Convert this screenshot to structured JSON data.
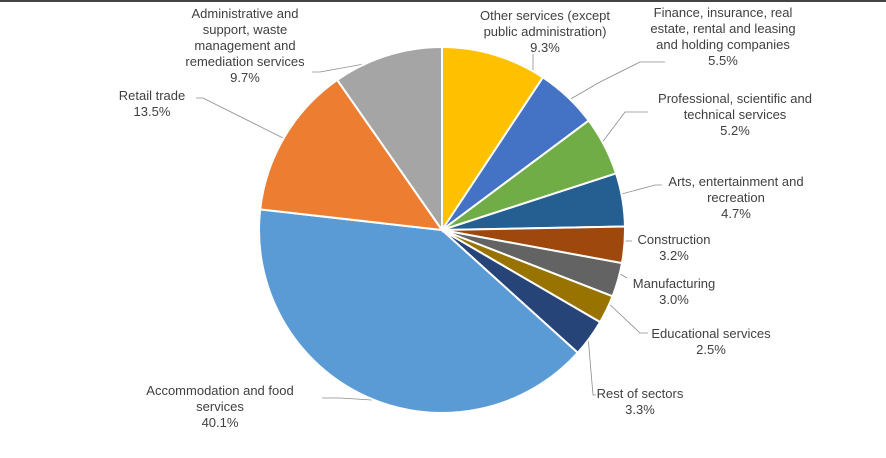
{
  "chart_data": {
    "type": "pie",
    "title": "",
    "start_angle_deg": 0,
    "direction": "clockwise",
    "slices": [
      {
        "label_lines": [
          "Other services (except",
          "public administration)"
        ],
        "pct_text": "9.3%",
        "value": 9.3,
        "color": "#FFC000"
      },
      {
        "label_lines": [
          "Finance, insurance, real",
          "estate, rental and leasing",
          "and holding companies"
        ],
        "pct_text": "5.5%",
        "value": 5.5,
        "color": "#4472C4"
      },
      {
        "label_lines": [
          "Professional, scientific and",
          "technical services"
        ],
        "pct_text": "5.2%",
        "value": 5.2,
        "color": "#70AD47"
      },
      {
        "label_lines": [
          "Arts, entertainment and",
          "recreation"
        ],
        "pct_text": "4.7%",
        "value": 4.7,
        "color": "#255E91"
      },
      {
        "label_lines": [
          "Construction"
        ],
        "pct_text": "3.2%",
        "value": 3.2,
        "color": "#9E480E"
      },
      {
        "label_lines": [
          "Manufacturing"
        ],
        "pct_text": "3.0%",
        "value": 3.0,
        "color": "#636363"
      },
      {
        "label_lines": [
          "Educational services"
        ],
        "pct_text": "2.5%",
        "value": 2.5,
        "color": "#997300"
      },
      {
        "label_lines": [
          "Rest of sectors"
        ],
        "pct_text": "3.3%",
        "value": 3.3,
        "color": "#264478"
      },
      {
        "label_lines": [
          "Accommodation and food",
          "services"
        ],
        "pct_text": "40.1%",
        "value": 40.1,
        "color": "#5B9BD5"
      },
      {
        "label_lines": [
          "Retail trade"
        ],
        "pct_text": "13.5%",
        "value": 13.5,
        "color": "#ED7D31"
      },
      {
        "label_lines": [
          "Administrative and",
          "support, waste",
          "management and",
          "remediation services"
        ],
        "pct_text": "9.7%",
        "value": 9.7,
        "color": "#A5A5A5"
      }
    ]
  }
}
